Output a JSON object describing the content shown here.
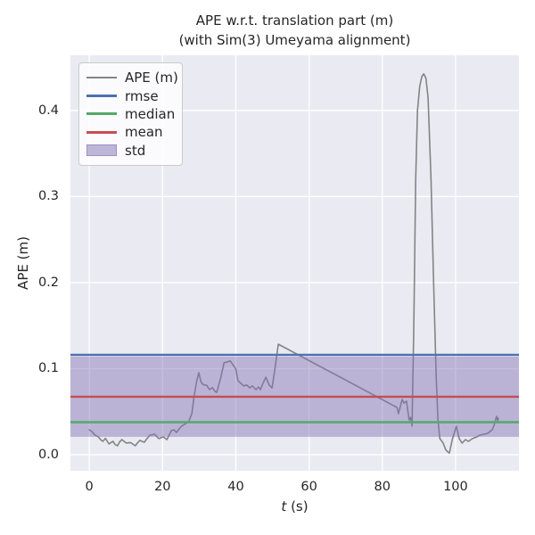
{
  "figure": {
    "title_line1": "APE w.r.t. translation part (m)",
    "title_line2": "(with Sim(3) Umeyama alignment)"
  },
  "axes": {
    "ylabel": "APE (m)",
    "xlabel_var": "t",
    "xlabel_rest": "(s)"
  },
  "legend": {
    "items": [
      {
        "label": "APE (m)",
        "swatch": "line",
        "color": "#848484",
        "thickness": 2
      },
      {
        "label": "rmse",
        "swatch": "line",
        "color": "#4c72b0",
        "thickness": 3
      },
      {
        "label": "median",
        "swatch": "line",
        "color": "#55a868",
        "thickness": 3
      },
      {
        "label": "mean",
        "swatch": "line",
        "color": "#c44e52",
        "thickness": 3
      },
      {
        "label": "std",
        "swatch": "patch",
        "color": "rgba(129,114,178,0.5)"
      }
    ]
  },
  "chart_data": {
    "type": "line",
    "title": "APE w.r.t. translation part (m) (with Sim(3) Umeyama alignment)",
    "xlabel": "t (s)",
    "ylabel": "APE (m)",
    "xlim": [
      -5.15,
      117.3
    ],
    "ylim": [
      -0.0187,
      0.4642
    ],
    "xticks": [
      0,
      20,
      40,
      60,
      80,
      100
    ],
    "yticks": [
      0.0,
      0.1,
      0.2,
      0.3,
      0.4
    ],
    "grid": true,
    "background_color": "#eaeaf2",
    "grid_color": "#ffffff",
    "legend_position": "upper left",
    "stats": {
      "rmse": {
        "value": 0.1161,
        "color": "#4c72b0"
      },
      "median": {
        "value": 0.0378,
        "color": "#55a868"
      },
      "mean": {
        "value": 0.0674,
        "color": "#c44e52"
      },
      "std": {
        "value": 0.0466,
        "band": [
          0.0207,
          0.114
        ],
        "color": "#8172b2",
        "alpha": 0.45
      }
    },
    "series": [
      {
        "name": "APE (m)",
        "color": "#848484",
        "width": 1.6,
        "points": [
          [
            0,
            0.029
          ],
          [
            0.8,
            0.0265
          ],
          [
            1.6,
            0.0225
          ],
          [
            2.4,
            0.021
          ],
          [
            3.2,
            0.017
          ],
          [
            3.7,
            0.0155
          ],
          [
            4.4,
            0.019
          ],
          [
            5.4,
            0.0124
          ],
          [
            6,
            0.0145
          ],
          [
            6.5,
            0.0155
          ],
          [
            7,
            0.012
          ],
          [
            7.7,
            0.0104
          ],
          [
            8.3,
            0.015
          ],
          [
            8.9,
            0.0176
          ],
          [
            9.5,
            0.0155
          ],
          [
            10.1,
            0.0135
          ],
          [
            10.8,
            0.014
          ],
          [
            11.4,
            0.0138
          ],
          [
            12,
            0.012
          ],
          [
            12.6,
            0.0104
          ],
          [
            13.2,
            0.014
          ],
          [
            13.8,
            0.0166
          ],
          [
            14.4,
            0.0155
          ],
          [
            15,
            0.0145
          ],
          [
            15.8,
            0.019
          ],
          [
            16.6,
            0.0228
          ],
          [
            17.8,
            0.0238
          ],
          [
            19,
            0.0187
          ],
          [
            20.2,
            0.0207
          ],
          [
            21.2,
            0.0176
          ],
          [
            22.4,
            0.028
          ],
          [
            23.1,
            0.029
          ],
          [
            23.8,
            0.026
          ],
          [
            25.1,
            0.033
          ],
          [
            26.3,
            0.036
          ],
          [
            27.2,
            0.039
          ],
          [
            28,
            0.048
          ],
          [
            28.6,
            0.0674
          ],
          [
            29.3,
            0.085
          ],
          [
            29.9,
            0.0953
          ],
          [
            30.5,
            0.0845
          ],
          [
            31.1,
            0.0815
          ],
          [
            32.1,
            0.0805
          ],
          [
            32.8,
            0.0756
          ],
          [
            33.6,
            0.078
          ],
          [
            34.3,
            0.0735
          ],
          [
            34.8,
            0.0725
          ],
          [
            35.8,
            0.088
          ],
          [
            36.8,
            0.107
          ],
          [
            37.5,
            0.1075
          ],
          [
            38.5,
            0.109
          ],
          [
            39.3,
            0.104
          ],
          [
            40,
            0.0995
          ],
          [
            40.6,
            0.086
          ],
          [
            41.4,
            0.083
          ],
          [
            42.1,
            0.08
          ],
          [
            43,
            0.081
          ],
          [
            43.8,
            0.0777
          ],
          [
            44.5,
            0.08
          ],
          [
            45.5,
            0.0756
          ],
          [
            46.2,
            0.0787
          ],
          [
            46.7,
            0.0756
          ],
          [
            47.4,
            0.083
          ],
          [
            48.2,
            0.09
          ],
          [
            49.1,
            0.081
          ],
          [
            49.9,
            0.0777
          ],
          [
            50.8,
            0.103
          ],
          [
            51.6,
            0.1285
          ],
          [
            84,
            0.055
          ],
          [
            84.4,
            0.0477
          ],
          [
            85.4,
            0.0642
          ],
          [
            85.9,
            0.06
          ],
          [
            86.6,
            0.0622
          ],
          [
            87.3,
            0.0404
          ],
          [
            87.7,
            0.0435
          ],
          [
            88.1,
            0.0332
          ],
          [
            88.6,
            0.15
          ],
          [
            89.1,
            0.32
          ],
          [
            89.6,
            0.4
          ],
          [
            90.2,
            0.428
          ],
          [
            90.8,
            0.4395
          ],
          [
            91.3,
            0.4425
          ],
          [
            91.9,
            0.4375
          ],
          [
            92.5,
            0.4145
          ],
          [
            93.3,
            0.32
          ],
          [
            94,
            0.2
          ],
          [
            94.7,
            0.09
          ],
          [
            95.2,
            0.04
          ],
          [
            95.7,
            0.0187
          ],
          [
            96.6,
            0.0135
          ],
          [
            97.3,
            0.006
          ],
          [
            97.9,
            0.0031
          ],
          [
            98.3,
            0.002
          ],
          [
            99.1,
            0.0176
          ],
          [
            100.2,
            0.033
          ],
          [
            101,
            0.0187
          ],
          [
            101.8,
            0.0135
          ],
          [
            102.7,
            0.0176
          ],
          [
            103.5,
            0.0155
          ],
          [
            104.6,
            0.0187
          ],
          [
            105.8,
            0.0207
          ],
          [
            106.6,
            0.0228
          ],
          [
            107.8,
            0.0238
          ],
          [
            108.8,
            0.0249
          ],
          [
            110,
            0.029
          ],
          [
            110.5,
            0.0342
          ],
          [
            111.2,
            0.0446
          ],
          [
            111.5,
            0.0394
          ],
          [
            111.7,
            0.0425
          ]
        ]
      }
    ]
  }
}
